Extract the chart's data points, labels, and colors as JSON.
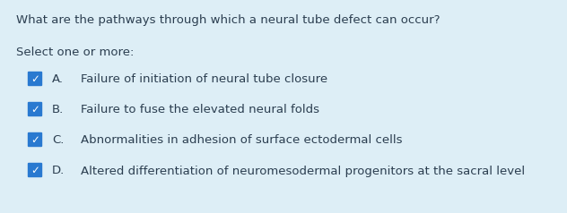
{
  "background_color": "#ddeef6",
  "question": "What are the pathways through which a neural tube defect can occur?",
  "instruction": "Select one or more:",
  "options": [
    {
      "letter": "A.",
      "text": "Failure of initiation of neural tube closure",
      "checked": true
    },
    {
      "letter": "B.",
      "text": "Failure to fuse the elevated neural folds",
      "checked": true
    },
    {
      "letter": "C.",
      "text": "Abnormalities in adhesion of surface ectodermal cells",
      "checked": true
    },
    {
      "letter": "D.",
      "text": "Altered differentiation of neuromesodermal progenitors at the sacral level",
      "checked": true
    }
  ],
  "question_color": "#2b3e50",
  "instruction_color": "#2b3e50",
  "option_text_color": "#2b3e50",
  "checkbox_color": "#2979d0",
  "checkmark_color": "#ffffff",
  "question_fontsize": 9.5,
  "instruction_fontsize": 9.5,
  "option_fontsize": 9.5,
  "font_family": "DejaVu Sans"
}
